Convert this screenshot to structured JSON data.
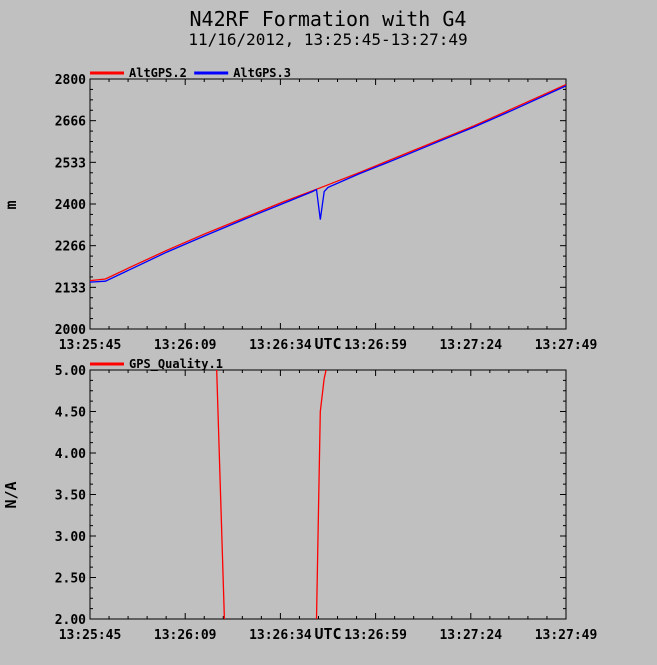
{
  "title": "N42RF Formation with G4",
  "subtitle": "11/16/2012, 13:25:45-13:27:49",
  "colors": {
    "background": "#c0c0c0",
    "plot_bg": "#c0c0c0",
    "red": "#ff0000",
    "blue": "#0000ff"
  },
  "chart_data": [
    {
      "type": "line",
      "ylabel": "m",
      "xlabel": "UTC",
      "ylim": [
        2000,
        2800
      ],
      "yticks": [
        "2000",
        "2133",
        "2266",
        "2400",
        "2533",
        "2666",
        "2800"
      ],
      "xlim_seconds": [
        0,
        124
      ],
      "xticks": [
        "13:25:45",
        "13:26:09",
        "13:26:34",
        "13:26:59",
        "13:27:24",
        "13:27:49"
      ],
      "grid": false,
      "legend": "top-left",
      "series": [
        {
          "name": "AltGPS.2",
          "color": "#ff0000",
          "points": [
            [
              0,
              2155
            ],
            [
              4,
              2160
            ],
            [
              10,
              2195
            ],
            [
              20,
              2252
            ],
            [
              30,
              2305
            ],
            [
              40,
              2355
            ],
            [
              50,
              2405
            ],
            [
              60,
              2452
            ],
            [
              70,
              2500
            ],
            [
              80,
              2550
            ],
            [
              90,
              2600
            ],
            [
              100,
              2650
            ],
            [
              110,
              2705
            ],
            [
              124,
              2782
            ]
          ]
        },
        {
          "name": "AltGPS.3",
          "color": "#0000ff",
          "points": [
            [
              0,
              2150
            ],
            [
              4,
              2153
            ],
            [
              10,
              2188
            ],
            [
              20,
              2246
            ],
            [
              30,
              2299
            ],
            [
              40,
              2350
            ],
            [
              50,
              2400
            ],
            [
              58,
              2440
            ],
            [
              59,
              2446
            ],
            [
              60,
              2350
            ],
            [
              61,
              2440
            ],
            [
              62,
              2453
            ],
            [
              70,
              2496
            ],
            [
              80,
              2545
            ],
            [
              90,
              2596
            ],
            [
              100,
              2646
            ],
            [
              110,
              2700
            ],
            [
              124,
              2778
            ]
          ]
        }
      ]
    },
    {
      "type": "line",
      "ylabel": "N/A",
      "xlabel": "UTC",
      "ylim": [
        2.0,
        5.0
      ],
      "yticks": [
        "2.00",
        "2.50",
        "3.00",
        "3.50",
        "4.00",
        "4.50",
        "5.00"
      ],
      "xlim_seconds": [
        0,
        124
      ],
      "xticks": [
        "13:25:45",
        "13:26:09",
        "13:26:34",
        "13:26:59",
        "13:27:24",
        "13:27:49"
      ],
      "grid": false,
      "legend": "top-left",
      "series": [
        {
          "name": "GPS_Quality.1",
          "color": "#ff0000",
          "segments": [
            [
              [
                33,
                5.0
              ],
              [
                35,
                2.0
              ]
            ],
            [
              [
                59,
                2.0
              ],
              [
                60,
                4.5
              ],
              [
                61,
                4.9
              ],
              [
                61.5,
                5.0
              ]
            ]
          ]
        }
      ]
    }
  ]
}
